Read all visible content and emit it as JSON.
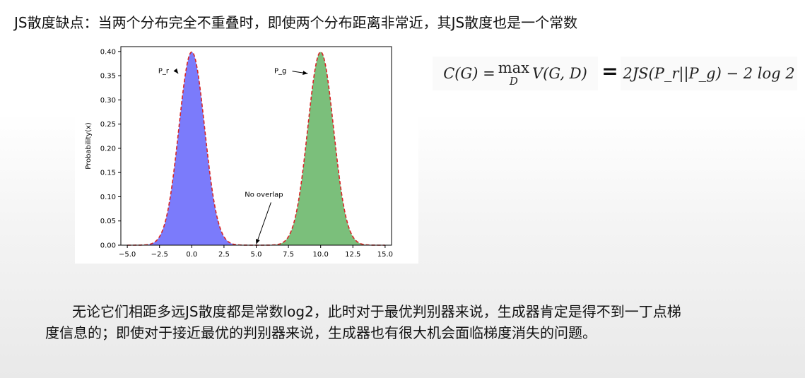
{
  "slide": {
    "title": "JS散度缺点：当两个分布完全不重叠时，即使两个分布距离非常近，其JS散度也是一个常数",
    "paragraph_line1": "无论它们相距多远JS散度都是常数log2，此时对于最优判别器来说，生成器肯定是得不到一丁点梯",
    "paragraph_line2": "度信息的；即使对于接近最优的判别器来说，生成器也有很大机会面临梯度消失的问题。"
  },
  "formula": {
    "lhs_pre": "C(G) =",
    "max_op": "max",
    "max_sub": "D",
    "lhs_post": "V(G, D)",
    "equals": "=",
    "rhs": "2JS(P_r||P_g) − 2 log 2"
  },
  "colors": {
    "pr_fill": "#7b7bfb",
    "pg_fill": "#7bbf7b",
    "curve": "#d62728",
    "text": "#111111"
  },
  "chart_data": {
    "type": "area",
    "xlabel": "",
    "ylabel": "Probability(x)",
    "xlim": [
      -5.5,
      15.5
    ],
    "ylim": [
      0,
      0.41
    ],
    "xticks": [
      -5.0,
      -2.5,
      0.0,
      2.5,
      5.0,
      7.5,
      10.0,
      12.5,
      15.0
    ],
    "xtick_labels": [
      "−5.0",
      "−2.5",
      "0.0",
      "2.5",
      "5.0",
      "7.5",
      "10.0",
      "12.5",
      "15.0"
    ],
    "yticks": [
      0.0,
      0.05,
      0.1,
      0.15,
      0.2,
      0.25,
      0.3,
      0.35,
      0.4
    ],
    "ytick_labels": [
      "0.00",
      "0.05",
      "0.10",
      "0.15",
      "0.20",
      "0.25",
      "0.30",
      "0.35",
      "0.40"
    ],
    "grid": false,
    "series": [
      {
        "name": "P_r",
        "mean": 0.0,
        "std": 1.0,
        "peak": 0.399
      },
      {
        "name": "P_g",
        "mean": 10.0,
        "std": 1.0,
        "peak": 0.399
      }
    ],
    "annotations": [
      {
        "text": "P_r",
        "x": -2.6,
        "y": 0.355,
        "arrow_to_x": -1.05,
        "arrow_to_y": 0.35
      },
      {
        "text": "P_g",
        "x": 6.4,
        "y": 0.355,
        "arrow_to_x": 9.0,
        "arrow_to_y": 0.35
      },
      {
        "text": "No overlap",
        "x": 5.6,
        "y": 0.1,
        "arrow_to_x": 5.0,
        "arrow_to_y": 0.002
      }
    ]
  }
}
